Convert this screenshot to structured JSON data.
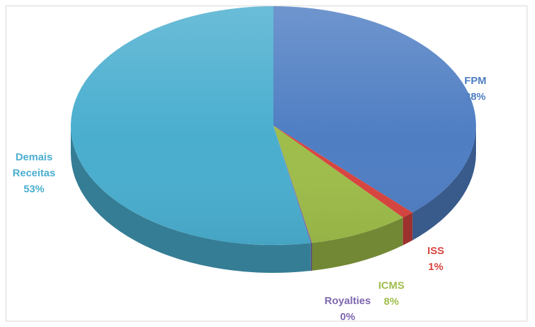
{
  "chart_data": {
    "type": "pie",
    "title": "",
    "style": "3d",
    "slices": [
      {
        "label": "FPM",
        "value": 38,
        "pct_label": "38%",
        "color": "#4f7ec3"
      },
      {
        "label": "ISS",
        "value": 1,
        "pct_label": "1%",
        "color": "#d9443f"
      },
      {
        "label": "ICMS",
        "value": 8,
        "pct_label": "8%",
        "color": "#9ebd4a"
      },
      {
        "label": "Royalties",
        "value": 0,
        "pct_label": "0%",
        "color": "#7d66b0"
      },
      {
        "label": "Demais Receitas",
        "label_lines": [
          "Demais",
          "Receitas"
        ],
        "value": 53,
        "pct_label": "53%",
        "color": "#4aaecf"
      }
    ],
    "label_colors": {
      "FPM": "#4f7ec3",
      "ISS": "#d9443f",
      "ICMS": "#9ebd4a",
      "Royalties": "#7d66b0",
      "Demais Receitas": "#4aaecf"
    }
  }
}
